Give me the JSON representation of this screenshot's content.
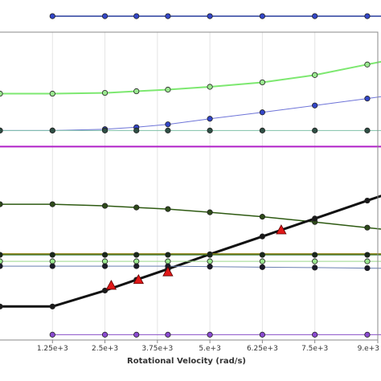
{
  "chart_data": {
    "type": "line",
    "xlabel": "Rotational Velocity (rad/s)",
    "xlim": [
      0,
      9000
    ],
    "ylim": [
      0,
      1
    ],
    "x_ticks": [
      {
        "value": 1250,
        "label": "1.25e+3"
      },
      {
        "value": 2500,
        "label": "2.5e+3"
      },
      {
        "value": 3750,
        "label": "3.75e+3"
      },
      {
        "value": 5000,
        "label": "5.e+3"
      },
      {
        "value": 6250,
        "label": "6.25e+3"
      },
      {
        "value": 7500,
        "label": "7.5e+3"
      },
      {
        "value": 9000,
        "label": "9.e+3"
      }
    ],
    "grid": true,
    "series": [
      {
        "color": "#2a3f9e",
        "marker": "circle",
        "marker_fill": "#3346c8",
        "stroke_width": 1.5,
        "x": [
          1250,
          2500,
          3250,
          4000,
          5000,
          6250,
          7500,
          8750,
          10000
        ],
        "y": [
          0.9525,
          0.9525,
          0.9525,
          0.9525,
          0.9525,
          0.9525,
          0.9525,
          0.9525,
          0.9525
        ]
      },
      {
        "color": "#7de870",
        "marker": "circle",
        "marker_fill": "#9be890",
        "stroke_width": 2,
        "x": [
          0,
          1250,
          2500,
          3250,
          4000,
          5000,
          6250,
          7500,
          8750,
          10000
        ],
        "y": [
          0.7245,
          0.7245,
          0.7268,
          0.7316,
          0.7364,
          0.7447,
          0.7578,
          0.7793,
          0.8103,
          0.8412
        ]
      },
      {
        "color": "#6e74d8",
        "marker": "circle",
        "marker_fill": "#3346c8",
        "stroke_width": 1,
        "x": [
          0,
          1250,
          2500,
          3250,
          4000,
          5000,
          6250,
          7500,
          8750,
          10000
        ],
        "y": [
          0.6161,
          0.6161,
          0.6199,
          0.6257,
          0.6342,
          0.6507,
          0.6696,
          0.6898,
          0.7101,
          0.7316
        ]
      },
      {
        "color": "#7fc0a8",
        "marker": "circle",
        "marker_fill": "#2f4f45",
        "stroke_width": 1,
        "x": [
          0,
          1250,
          2500,
          3250,
          4000,
          5000,
          6250,
          7500,
          8750,
          10000
        ],
        "y": [
          0.6161,
          0.6161,
          0.6161,
          0.6161,
          0.6161,
          0.6161,
          0.6161,
          0.6161,
          0.6161,
          0.6161
        ]
      },
      {
        "color": "#b020c8",
        "marker": "none",
        "stroke_width": 2,
        "x": [
          0,
          10000
        ],
        "y": [
          0.5688,
          0.5688
        ]
      },
      {
        "color": "#2e5a12",
        "marker": "circle",
        "marker_fill": "#2e4a1a",
        "stroke_width": 1.5,
        "x": [
          0,
          1250,
          2500,
          3250,
          4000,
          5000,
          6250,
          7500,
          8750,
          10000
        ],
        "y": [
          0.3993,
          0.3993,
          0.3946,
          0.3898,
          0.3851,
          0.3756,
          0.3626,
          0.3471,
          0.3305,
          0.3139
        ]
      },
      {
        "color": "#111111",
        "marker": "circle",
        "marker_fill": "#1a1a1a",
        "stroke_width": 3,
        "x": [
          0,
          1250,
          2500,
          3250,
          4000,
          5000,
          6250,
          7500,
          8750,
          10000
        ],
        "y": [
          0.0986,
          0.0986,
          0.1455,
          0.1771,
          0.2088,
          0.2522,
          0.3046,
          0.3572,
          0.41,
          0.462
        ]
      },
      {
        "color": "#8a7d10",
        "marker": "none",
        "stroke_width": 2,
        "x": [
          0,
          10000
        ],
        "y": [
          0.2528,
          0.2528
        ]
      },
      {
        "color": "#1f6e2c",
        "marker": "circle",
        "marker_fill": "#1a2a1a",
        "stroke_width": 1,
        "x": [
          0,
          1250,
          2500,
          3250,
          4000,
          5000,
          6250,
          7500,
          8750,
          10000
        ],
        "y": [
          0.2504,
          0.2504,
          0.2504,
          0.2504,
          0.2504,
          0.2504,
          0.2504,
          0.2504,
          0.2504,
          0.2504
        ]
      },
      {
        "color": "#9ad88a",
        "marker": "circle",
        "marker_fill": "#9be890",
        "stroke_width": 1,
        "x": [
          0,
          1250,
          2500,
          3250,
          4000,
          5000,
          6250,
          7500,
          8750,
          10000
        ],
        "y": [
          0.2314,
          0.2314,
          0.2314,
          0.2314,
          0.2314,
          0.2314,
          0.2314,
          0.2314,
          0.2314,
          0.2314
        ]
      },
      {
        "color": "#6a7fb0",
        "marker": "circle",
        "marker_fill": "#1a1a2a",
        "stroke_width": 1,
        "x": [
          0,
          1250,
          2500,
          3250,
          4000,
          5000,
          6250,
          7500,
          8750,
          10000
        ],
        "y": [
          0.2173,
          0.2173,
          0.2173,
          0.2173,
          0.2173,
          0.2158,
          0.2143,
          0.2129,
          0.2114,
          0.2099
        ]
      },
      {
        "color": "#8850c8",
        "marker": "circle",
        "marker_fill": "#8a4ad0",
        "stroke_width": 1,
        "x": [
          1250,
          2500,
          3250,
          4000,
          5000,
          6250,
          7500,
          8750,
          10000
        ],
        "y": [
          0.0157,
          0.0157,
          0.0157,
          0.0157,
          0.0157,
          0.0157,
          0.0157,
          0.0157,
          0.0157
        ]
      }
    ],
    "annotations": [
      {
        "marker": "triangle",
        "color": "#e01818",
        "x": 2650,
        "y": 0.1621
      },
      {
        "marker": "triangle",
        "color": "#e01818",
        "x": 3300,
        "y": 0.179
      },
      {
        "marker": "triangle",
        "color": "#e01818",
        "x": 4000,
        "y": 0.2017
      },
      {
        "marker": "triangle",
        "color": "#e01818",
        "x": 6700,
        "y": 0.3251
      }
    ]
  }
}
